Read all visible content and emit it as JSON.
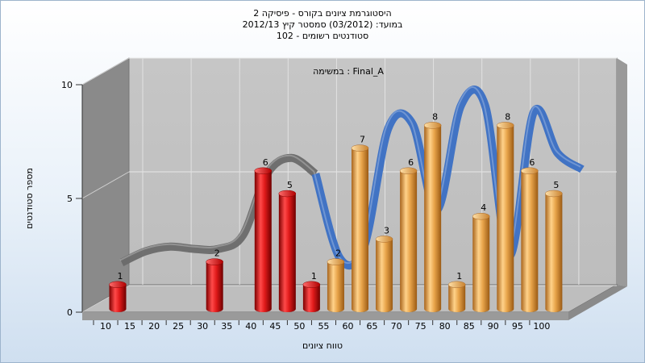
{
  "title_lines": [
    "היסטוגרמת ציונים בקורס - פיסיקה 2",
    "במועד: (03/2012)  סמסטר קיץ 2012/13",
    "סטודנטים רשומים - 102"
  ],
  "chart_data": {
    "type": "bar",
    "title": "היסטוגרמת ציונים בקורס - פיסיקה 2",
    "subtitle": "Final_A : במשימה",
    "xlabel": "טווח ציונים",
    "ylabel": "מספר סטודנטים",
    "ylim": [
      0,
      10
    ],
    "yticks": [
      0,
      5,
      10
    ],
    "xticks": [
      "10",
      "15",
      "20",
      "25",
      "30",
      "35",
      "40",
      "45",
      "50",
      "55",
      "60",
      "65",
      "70",
      "75",
      "80",
      "85",
      "90",
      "95",
      "100"
    ],
    "bars": [
      {
        "x": 10,
        "value": 1,
        "color": "red"
      },
      {
        "x": 30,
        "value": 2,
        "color": "red"
      },
      {
        "x": 40,
        "value": 6,
        "color": "red"
      },
      {
        "x": 45,
        "value": 5,
        "color": "red"
      },
      {
        "x": 50,
        "value": 1,
        "color": "red"
      },
      {
        "x": 55,
        "value": 2,
        "color": "orange"
      },
      {
        "x": 60,
        "value": 7,
        "color": "orange"
      },
      {
        "x": 65,
        "value": 3,
        "color": "orange"
      },
      {
        "x": 70,
        "value": 6,
        "color": "orange"
      },
      {
        "x": 75,
        "value": 8,
        "color": "orange"
      },
      {
        "x": 80,
        "value": 1,
        "color": "orange"
      },
      {
        "x": 85,
        "value": 4,
        "color": "orange"
      },
      {
        "x": 90,
        "value": 8,
        "color": "orange"
      },
      {
        "x": 95,
        "value": 6,
        "color": "orange"
      },
      {
        "x": 100,
        "value": 5,
        "color": "orange"
      }
    ],
    "curve_x": [
      10,
      15,
      20,
      25,
      30,
      35,
      40,
      45,
      50,
      55,
      60,
      65,
      70,
      75,
      80,
      85,
      90,
      95,
      100,
      105
    ],
    "curve_y": [
      1.4,
      1.9,
      2.1,
      2.0,
      2.0,
      2.6,
      5.3,
      6.0,
      5.3,
      1.6,
      2.1,
      7.3,
      7.5,
      3.7,
      8.3,
      8.3,
      1.7,
      8.0,
      6.2,
      5.5
    ],
    "grid": true,
    "colors": {
      "red_bar": "#e01a1a",
      "orange_bar": "#e8a44a",
      "curve_blue": "#3a6fc4",
      "curve_gray": "#6a6a6a"
    }
  }
}
